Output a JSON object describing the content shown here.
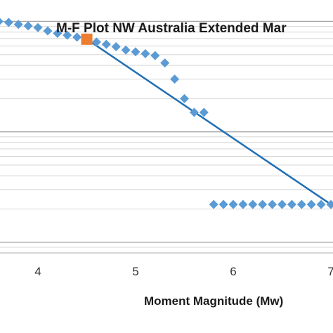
{
  "chart_data": {
    "type": "scatter",
    "title": "M-F Plot NW Australia Extended Mar",
    "xlabel": "Moment Magnitude (Mw)",
    "ylabel": "",
    "xlim": [
      3.6,
      7.05
    ],
    "x_ticks": [
      "4",
      "5",
      "6",
      "7"
    ],
    "y_scale": "log",
    "grid": true,
    "colors": {
      "points": "#5B9BD5",
      "fit_line": "#1F6FB4",
      "highlight": "#ED7D31"
    },
    "series": [
      {
        "values": [
          {
            "x": 3.6,
            "y": 1.0
          },
          {
            "x": 3.7,
            "y": 0.98
          },
          {
            "x": 3.8,
            "y": 0.94
          },
          {
            "x": 3.9,
            "y": 0.91
          },
          {
            "x": 4.0,
            "y": 0.88
          },
          {
            "x": 4.1,
            "y": 0.82
          },
          {
            "x": 4.2,
            "y": 0.78
          },
          {
            "x": 4.3,
            "y": 0.75
          },
          {
            "x": 4.4,
            "y": 0.72
          },
          {
            "x": 4.6,
            "y": 0.65
          },
          {
            "x": 4.7,
            "y": 0.62
          },
          {
            "x": 4.8,
            "y": 0.59
          },
          {
            "x": 4.9,
            "y": 0.55
          },
          {
            "x": 5.0,
            "y": 0.53
          },
          {
            "x": 5.1,
            "y": 0.51
          },
          {
            "x": 5.2,
            "y": 0.49
          },
          {
            "x": 5.3,
            "y": 0.42
          },
          {
            "x": 5.4,
            "y": 0.3
          },
          {
            "x": 5.5,
            "y": 0.2
          },
          {
            "x": 5.6,
            "y": 0.15
          },
          {
            "x": 5.7,
            "y": 0.15
          },
          {
            "x": 5.8,
            "y": 0.022
          },
          {
            "x": 5.9,
            "y": 0.022
          },
          {
            "x": 6.0,
            "y": 0.022
          },
          {
            "x": 6.1,
            "y": 0.022
          },
          {
            "x": 6.2,
            "y": 0.022
          },
          {
            "x": 6.3,
            "y": 0.022
          },
          {
            "x": 6.4,
            "y": 0.022
          },
          {
            "x": 6.5,
            "y": 0.022
          },
          {
            "x": 6.6,
            "y": 0.022
          },
          {
            "x": 6.7,
            "y": 0.022
          },
          {
            "x": 6.8,
            "y": 0.022
          },
          {
            "x": 6.9,
            "y": 0.022
          },
          {
            "x": 7.0,
            "y": 0.022
          }
        ]
      },
      {
        "marker": "square",
        "values": [
          {
            "x": 4.5,
            "y": 0.69
          }
        ]
      }
    ],
    "fit_line": [
      {
        "x": 4.5,
        "y": 0.69
      },
      {
        "x": 7.0,
        "y": 0.022
      }
    ]
  }
}
